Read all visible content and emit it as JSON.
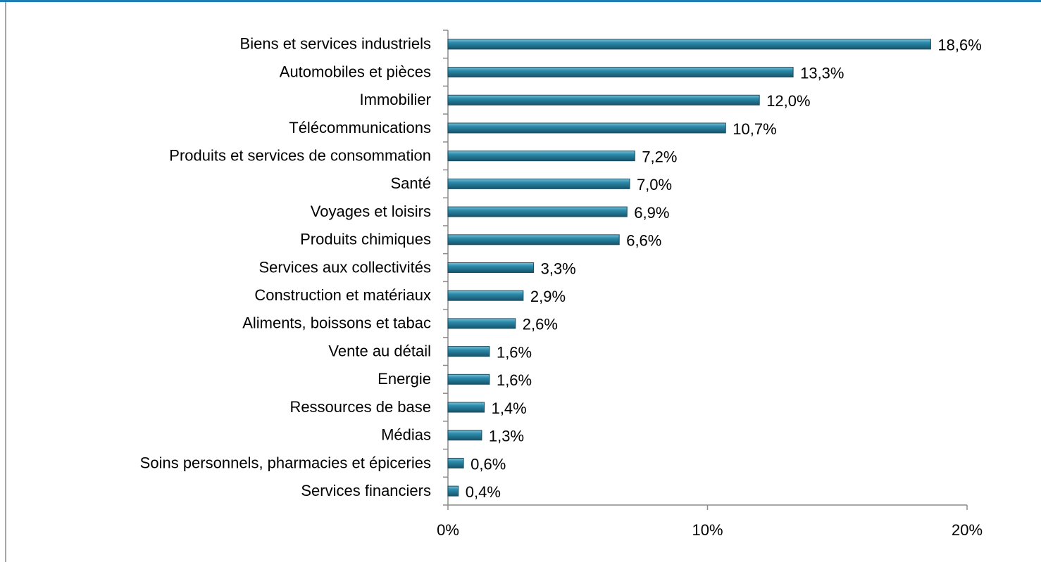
{
  "chart_data": {
    "type": "bar",
    "orientation": "horizontal",
    "categories": [
      "Biens et services industriels",
      "Automobiles et pièces",
      "Immobilier",
      "Télécommunications",
      "Produits et services de consommation",
      "Santé",
      "Voyages et loisirs",
      "Produits chimiques",
      "Services aux collectivités",
      "Construction et matériaux",
      "Aliments, boissons et tabac",
      "Vente au détail",
      "Energie",
      "Ressources de base",
      "Médias",
      "Soins personnels, pharmacies et épiceries",
      "Services financiers"
    ],
    "values": [
      18.6,
      13.3,
      12.0,
      10.7,
      7.2,
      7.0,
      6.9,
      6.6,
      3.3,
      2.9,
      2.6,
      1.6,
      1.6,
      1.4,
      1.3,
      0.6,
      0.4
    ],
    "value_labels": [
      "18,6%",
      "13,3%",
      "12,0%",
      "10,7%",
      "7,2%",
      "7,0%",
      "6,9%",
      "6,6%",
      "3,3%",
      "2,9%",
      "2,6%",
      "1,6%",
      "1,6%",
      "1,4%",
      "1,3%",
      "0,6%",
      "0,4%"
    ],
    "color": "#2b7f9b",
    "xlim": [
      0,
      20
    ],
    "xticks": [
      {
        "value": 0,
        "label": "0%"
      },
      {
        "value": 10,
        "label": "10%"
      },
      {
        "value": 20,
        "label": "20%"
      }
    ]
  }
}
